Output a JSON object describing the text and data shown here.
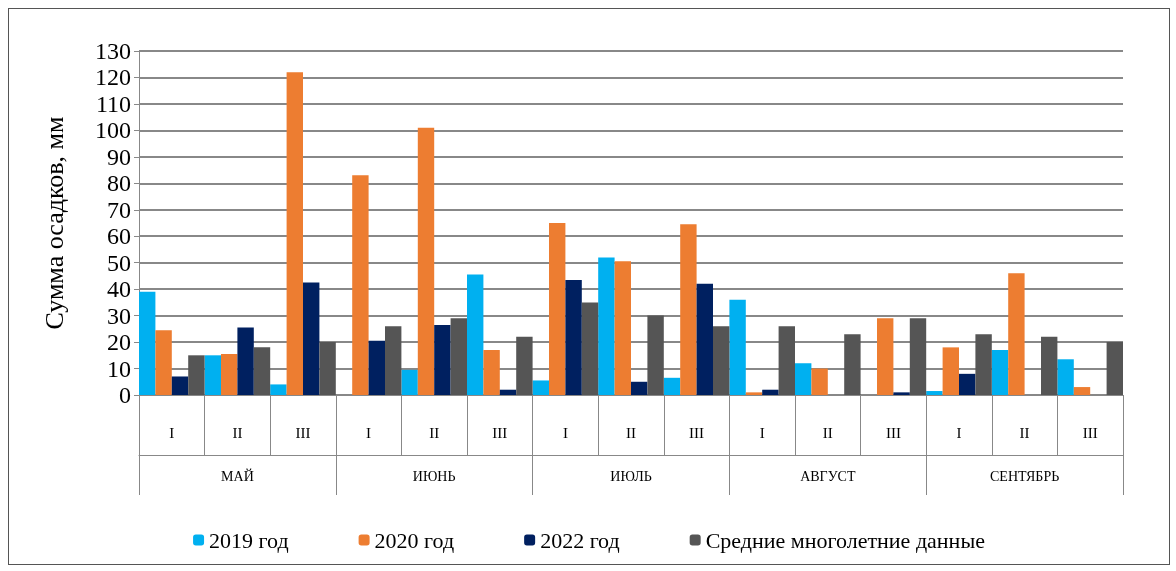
{
  "chart_data": {
    "type": "bar",
    "ylabel": "Сумма осадков, мм",
    "categories": [
      "I",
      "II",
      "III",
      "I",
      "II",
      "III",
      "I",
      "II",
      "III",
      "I",
      "II",
      "III",
      "I",
      "II",
      "III"
    ],
    "annotations": [
      "МАЙ",
      "ИЮНЬ",
      "ИЮЛЬ",
      "АВГУСТ",
      "СЕНТЯБРЬ"
    ],
    "series": [
      {
        "name": "2019 год",
        "color": "#00b0f0",
        "values": [
          39,
          15,
          4,
          0,
          9.5,
          45.5,
          5.5,
          52,
          6.5,
          36,
          12,
          0,
          1.5,
          17,
          13.5
        ]
      },
      {
        "name": "2020 год",
        "color": "#ed7d31",
        "values": [
          24.5,
          15.5,
          122,
          83,
          101,
          17,
          65,
          50.5,
          64.5,
          1,
          10,
          29,
          18,
          46,
          3
        ]
      },
      {
        "name": "2022 год",
        "color": "#002060",
        "values": [
          7,
          25.5,
          42.5,
          20.5,
          26.5,
          2,
          43.5,
          5,
          42,
          2,
          0,
          1,
          8,
          0,
          0
        ]
      },
      {
        "name": "Средние многолетние данные",
        "color": "#555555",
        "values": [
          15,
          18,
          20,
          26,
          29,
          22,
          35,
          30,
          26,
          26,
          23,
          29,
          23,
          22,
          20
        ]
      }
    ],
    "ylim": [
      0,
      130
    ],
    "yticks": [
      0,
      10,
      20,
      30,
      40,
      50,
      60,
      70,
      80,
      90,
      100,
      110,
      120,
      130
    ],
    "grid": "y",
    "legend": "bottom"
  }
}
